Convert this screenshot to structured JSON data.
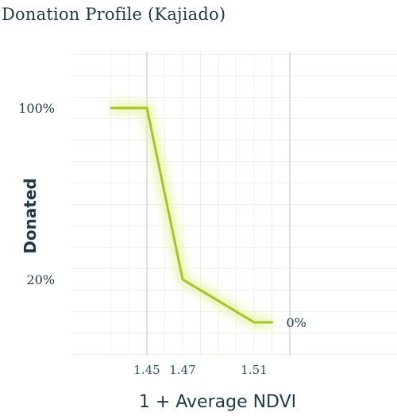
{
  "chart_data": {
    "type": "line",
    "title": "Donation Profile (Kajiado)",
    "xlabel": "1 + Average NDVI",
    "ylabel": "Donated",
    "x_ticks": [
      "1.45",
      "1.47",
      "1.51"
    ],
    "y_ticks": [
      "100%",
      "20%"
    ],
    "end_label": "0%",
    "series": [
      {
        "x": [
          1.43,
          1.45,
          1.47,
          1.51,
          1.52
        ],
        "y": [
          100,
          100,
          20,
          0,
          0
        ]
      }
    ],
    "xlim": [
      1.41,
      1.53
    ],
    "ylim": [
      -15,
      130
    ],
    "grid": true,
    "colors": {
      "line": "#a3c626",
      "glow": "#e7f3a6",
      "text": "#1d3a45",
      "tick": "#2b5a52"
    }
  }
}
